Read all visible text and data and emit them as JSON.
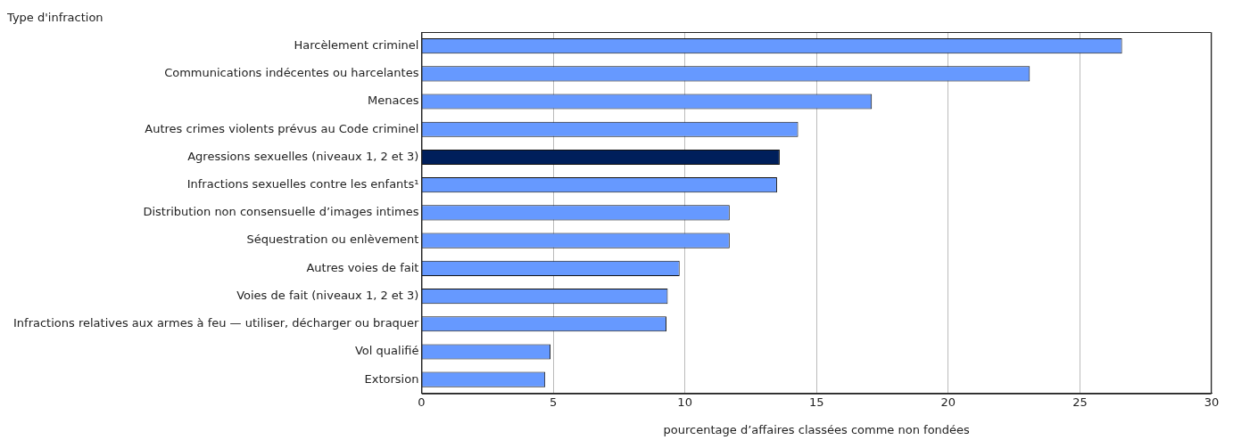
{
  "chart_data": {
    "type": "bar",
    "orientation": "horizontal",
    "ylabel": "Type d'infraction",
    "xlabel": "pourcentage d’affaires classées comme non fondées",
    "categories": [
      "Harcèlement criminel",
      "Communications indécentes ou harcelantes",
      "Menaces",
      "Autres crimes violents prévus au Code criminel",
      "Agressions sexuelles (niveaux 1, 2 et 3)",
      "Infractions sexuelles contre les enfants¹",
      "Distribution non consensuelle d’images intimes",
      "Séquestration ou enlèvement",
      "Autres voies de fait",
      "Voies de fait (niveaux 1, 2 et 3)",
      "Infractions relatives aux armes à feu — utiliser, décharger ou braquer",
      "Vol qualifié",
      "Extorsion"
    ],
    "values": [
      26.6,
      23.1,
      17.1,
      14.3,
      13.6,
      13.5,
      11.7,
      11.7,
      9.8,
      9.35,
      9.3,
      4.9,
      4.7
    ],
    "colors": [
      "#6699ff",
      "#6699ff",
      "#6699ff",
      "#6699ff",
      "#001f5b",
      "#6699ff",
      "#6699ff",
      "#6699ff",
      "#6699ff",
      "#6699ff",
      "#6699ff",
      "#6699ff",
      "#6699ff"
    ],
    "xlim": [
      0,
      30
    ],
    "xticks": [
      0,
      5,
      10,
      15,
      20,
      25,
      30
    ],
    "grid": "x",
    "legend": false
  }
}
